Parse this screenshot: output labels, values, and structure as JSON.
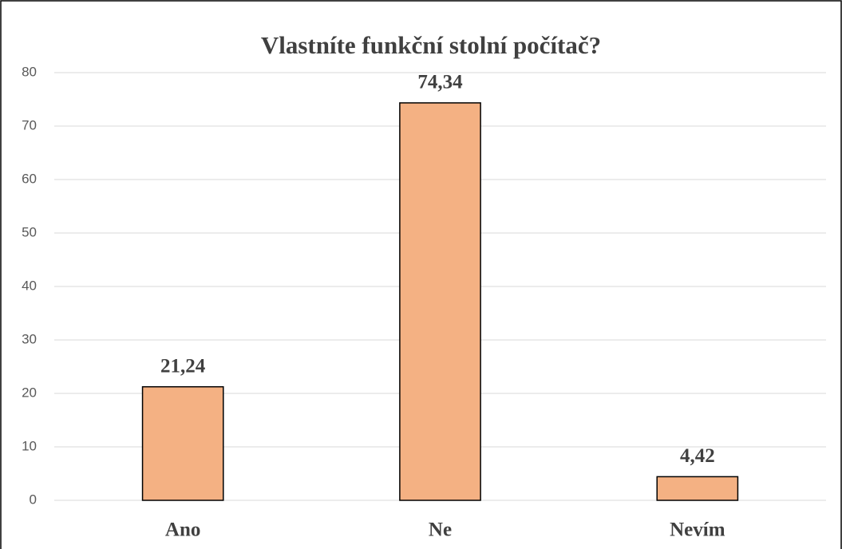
{
  "chart_data": {
    "type": "bar",
    "title": "Vlastníte funkční stolní počítač?",
    "categories": [
      "Ano",
      "Ne",
      "Nevím"
    ],
    "values": [
      21.24,
      74.34,
      4.42
    ],
    "value_labels": [
      "21,24",
      "74,34",
      "4,42"
    ],
    "color": "#f4b183",
    "ylim": [
      0,
      80
    ],
    "yticks": [
      0,
      10,
      20,
      30,
      40,
      50,
      60,
      70,
      80
    ],
    "grid": true
  }
}
